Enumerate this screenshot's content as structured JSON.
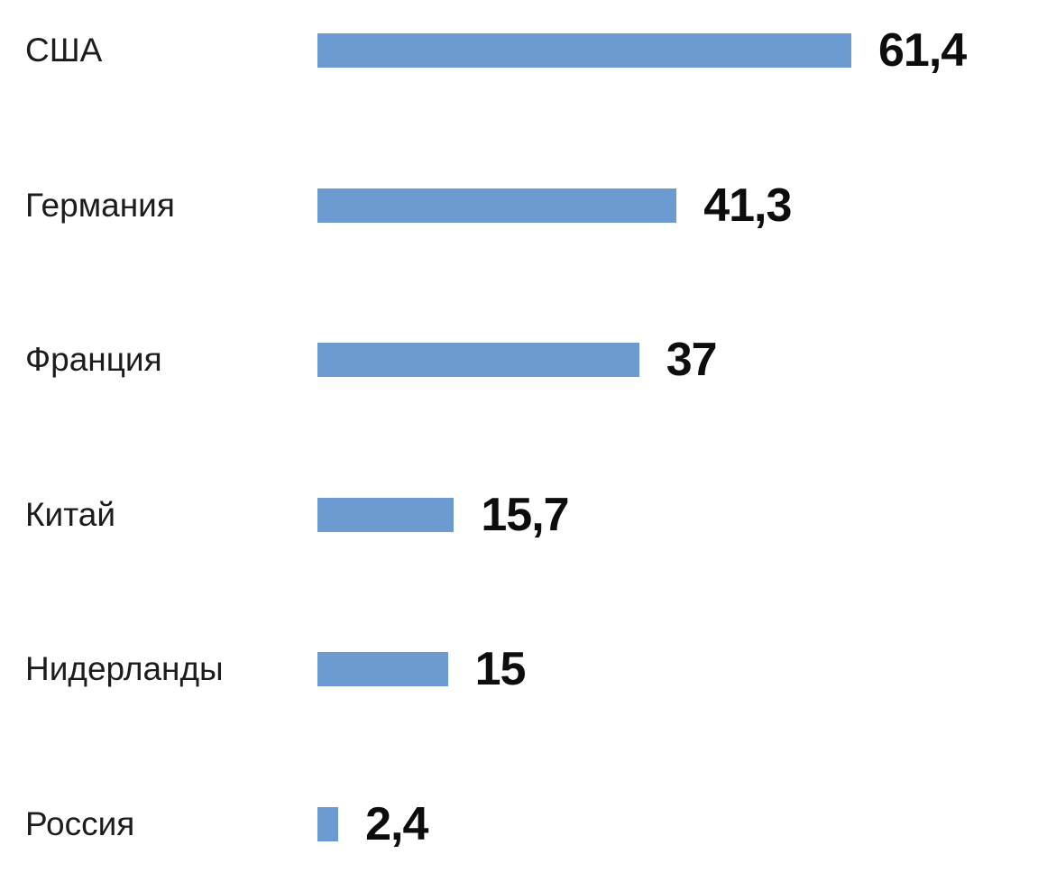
{
  "chart_data": {
    "type": "bar",
    "orientation": "horizontal",
    "title": "",
    "xlabel": "",
    "ylabel": "",
    "grid": false,
    "legend": false,
    "categories": [
      "США",
      "Германия",
      "Франция",
      "Китай",
      "Нидерланды",
      "Россия"
    ],
    "values": [
      61.4,
      41.3,
      37,
      15.7,
      15,
      2.4
    ],
    "value_labels": [
      "61,4",
      "41,3",
      "37",
      "15,7",
      "15",
      "2,4"
    ],
    "xlim": [
      0,
      61.4
    ],
    "bar_color": "#6c9bd2",
    "category_label_color": "#1c1c1c",
    "value_label_color": "#0d0d0d",
    "background_color": "#ffffff"
  }
}
